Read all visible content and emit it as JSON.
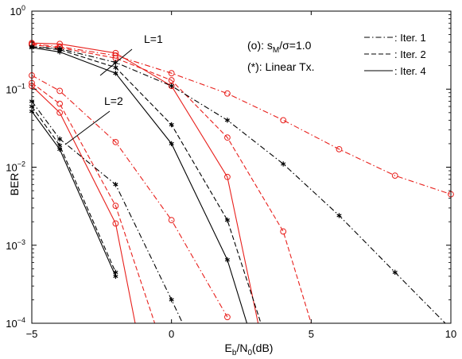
{
  "chart_data": {
    "type": "line",
    "xlabel": "E_b/N_0(dB)",
    "ylabel": "BER",
    "xlim": [
      -5,
      10
    ],
    "ylim": [
      0.0001,
      1
    ],
    "yscale": "log",
    "xticks": [
      "−5",
      "0",
      "5",
      "10"
    ],
    "yticks": [
      "10^-4",
      "10^-3",
      "10^-2",
      "10^-1",
      "10^0"
    ],
    "grid": false,
    "annotations": {
      "sm_line": "(o): s_M/σ=1.0",
      "linear_line": "(*): Linear Tx.",
      "L1": "L=1",
      "L2": "L=2"
    },
    "legend": {
      "placement": "top-right",
      "entries": [
        ": Iter. 1",
        ": Iter. 2",
        ": Iter. 4"
      ]
    },
    "colors": {
      "black": "#000000",
      "red": "#e8201c"
    },
    "series": [
      {
        "group": "L=1",
        "receiver": "s_M/σ=1.0",
        "iteration": 1,
        "color": "red",
        "dash": "dashdot",
        "marker": "o",
        "x": [
          -5,
          -4,
          -2,
          0,
          2,
          4,
          6,
          8,
          10
        ],
        "y": [
          0.38,
          0.35,
          0.27,
          0.16,
          0.088,
          0.04,
          0.017,
          0.0078,
          0.0045
        ]
      },
      {
        "group": "L=1",
        "receiver": "s_M/σ=1.0",
        "iteration": 2,
        "color": "red",
        "dash": "dash",
        "marker": "o",
        "x": [
          -5,
          -4,
          -2,
          0,
          2,
          4,
          5
        ],
        "y": [
          0.37,
          0.34,
          0.25,
          0.13,
          0.024,
          0.0015,
          0.0001
        ]
      },
      {
        "group": "L=1",
        "receiver": "s_M/σ=1.0",
        "iteration": 4,
        "color": "red",
        "dash": "solid",
        "marker": "o",
        "x": [
          -5,
          -4,
          -2,
          0,
          2,
          3.1
        ],
        "y": [
          0.39,
          0.38,
          0.29,
          0.11,
          0.0075,
          0.0001
        ]
      },
      {
        "group": "L=1",
        "receiver": "Linear Tx.",
        "iteration": 1,
        "color": "black",
        "dash": "dashdot",
        "marker": "*",
        "x": [
          -5,
          -4,
          -2,
          0,
          2,
          4,
          6,
          8,
          9.8
        ],
        "y": [
          0.35,
          0.33,
          0.22,
          0.11,
          0.04,
          0.011,
          0.0024,
          0.00045,
          0.0001
        ]
      },
      {
        "group": "L=1",
        "receiver": "Linear Tx.",
        "iteration": 2,
        "color": "black",
        "dash": "dash",
        "marker": "*",
        "x": [
          -5,
          -4,
          -2,
          0,
          2,
          3.2
        ],
        "y": [
          0.35,
          0.32,
          0.19,
          0.035,
          0.0021,
          0.0001
        ]
      },
      {
        "group": "L=1",
        "receiver": "Linear Tx.",
        "iteration": 4,
        "color": "black",
        "dash": "solid",
        "marker": "*",
        "x": [
          -5,
          -4,
          -2,
          0,
          2,
          2.7
        ],
        "y": [
          0.34,
          0.3,
          0.16,
          0.02,
          0.00065,
          0.0001
        ]
      },
      {
        "group": "L=2",
        "receiver": "s_M/σ=1.0",
        "iteration": 1,
        "color": "red",
        "dash": "dashdot",
        "marker": "o",
        "x": [
          -5,
          -4,
          -2,
          0,
          2
        ],
        "y": [
          0.15,
          0.095,
          0.021,
          0.0021,
          0.00012
        ]
      },
      {
        "group": "L=2",
        "receiver": "s_M/σ=1.0",
        "iteration": 2,
        "color": "red",
        "dash": "dash",
        "marker": "o",
        "x": [
          -5,
          -4,
          -2,
          -0.6
        ],
        "y": [
          0.12,
          0.065,
          0.0032,
          0.0001
        ]
      },
      {
        "group": "L=2",
        "receiver": "s_M/σ=1.0",
        "iteration": 4,
        "color": "red",
        "dash": "solid",
        "marker": "o",
        "x": [
          -5,
          -4,
          -2,
          -1.3
        ],
        "y": [
          0.11,
          0.05,
          0.0019,
          0.0001
        ]
      },
      {
        "group": "L=2",
        "receiver": "Linear Tx.",
        "iteration": 1,
        "color": "black",
        "dash": "dashdot",
        "marker": "*",
        "x": [
          -5,
          -4,
          -2,
          0,
          0.4
        ],
        "y": [
          0.07,
          0.023,
          0.006,
          0.0002,
          0.0001
        ]
      },
      {
        "group": "L=2",
        "receiver": "Linear Tx.",
        "iteration": 2,
        "color": "black",
        "dash": "dash",
        "marker": "*",
        "x": [
          -5,
          -4,
          -2
        ],
        "y": [
          0.06,
          0.019,
          0.00045
        ]
      },
      {
        "group": "L=2",
        "receiver": "Linear Tx.",
        "iteration": 4,
        "color": "black",
        "dash": "solid",
        "marker": "*",
        "x": [
          -5,
          -4,
          -2
        ],
        "y": [
          0.052,
          0.017,
          0.0004
        ]
      }
    ]
  }
}
